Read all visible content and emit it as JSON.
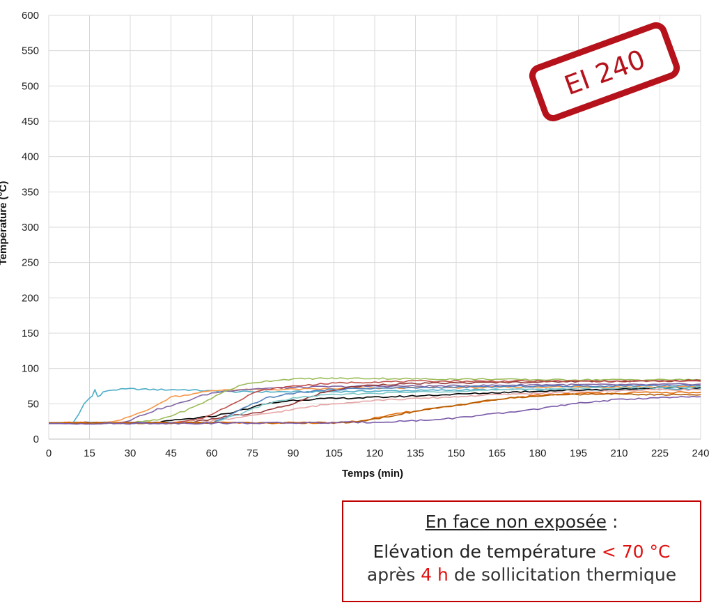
{
  "chart_data": {
    "type": "line",
    "title": "",
    "xlabel": "Temps (min)",
    "ylabel": "Température (°C)",
    "xlim": [
      0,
      240
    ],
    "ylim": [
      0,
      600
    ],
    "x_ticks": [
      0,
      15,
      30,
      45,
      60,
      75,
      90,
      105,
      120,
      135,
      150,
      165,
      180,
      195,
      210,
      225,
      240
    ],
    "y_ticks": [
      0,
      50,
      100,
      150,
      200,
      250,
      300,
      350,
      400,
      450,
      500,
      550,
      600
    ],
    "grid": true,
    "legend": "none",
    "series": [
      {
        "color": "#4bacc6",
        "x": [
          0,
          9,
          11,
          13,
          15,
          16,
          17,
          18,
          19,
          20,
          22,
          25,
          30,
          40,
          50,
          60,
          70,
          80,
          100,
          120,
          140,
          160,
          180,
          200,
          220,
          240
        ],
        "y": [
          23,
          23,
          35,
          50,
          58,
          62,
          70,
          60,
          62,
          66,
          69,
          70,
          71,
          70,
          70,
          68,
          67,
          67,
          67,
          68,
          69,
          70,
          70,
          70,
          71,
          71
        ]
      },
      {
        "color": "#f79646",
        "x": [
          0,
          20,
          25,
          30,
          35,
          40,
          45,
          50,
          55,
          60,
          65,
          70,
          80,
          100,
          120,
          140,
          160,
          180,
          200,
          220,
          240
        ],
        "y": [
          23,
          23,
          25,
          32,
          40,
          48,
          60,
          62,
          66,
          68,
          70,
          70,
          70,
          71,
          72,
          73,
          73,
          74,
          74,
          74,
          75
        ]
      },
      {
        "color": "#8064a2",
        "x": [
          0,
          25,
          30,
          35,
          40,
          45,
          50,
          55,
          60,
          65,
          70,
          80,
          100,
          120,
          140,
          160,
          180,
          200,
          220,
          240
        ],
        "y": [
          23,
          23,
          27,
          35,
          42,
          47,
          53,
          60,
          65,
          68,
          70,
          72,
          74,
          75,
          75,
          76,
          77,
          77,
          77,
          78
        ]
      },
      {
        "color": "#9bbb59",
        "x": [
          0,
          30,
          40,
          45,
          50,
          55,
          60,
          65,
          70,
          75,
          80,
          85,
          90,
          100,
          110,
          120,
          140,
          160,
          180,
          200,
          220,
          240
        ],
        "y": [
          23,
          23,
          27,
          33,
          40,
          48,
          58,
          68,
          75,
          80,
          82,
          84,
          85,
          86,
          86,
          86,
          85,
          85,
          84,
          84,
          84,
          84
        ]
      },
      {
        "color": "#000000",
        "x": [
          0,
          40,
          45,
          50,
          55,
          60,
          65,
          70,
          75,
          80,
          90,
          100,
          110,
          120,
          140,
          160,
          180,
          200,
          220,
          240
        ],
        "y": [
          23,
          23,
          26,
          28,
          30,
          32,
          36,
          40,
          45,
          50,
          55,
          57,
          58,
          59,
          62,
          65,
          68,
          70,
          72,
          73
        ]
      },
      {
        "color": "#953735",
        "x": [
          0,
          50,
          55,
          60,
          65,
          70,
          75,
          80,
          90,
          100,
          110,
          120,
          140,
          160,
          180,
          200,
          220,
          240
        ],
        "y": [
          23,
          23,
          25,
          28,
          32,
          34,
          36,
          40,
          50,
          65,
          73,
          77,
          79,
          80,
          81,
          82,
          82,
          83
        ]
      },
      {
        "color": "#c0504d",
        "x": [
          0,
          45,
          55,
          60,
          65,
          70,
          75,
          80,
          90,
          100,
          110,
          120,
          140,
          160,
          180,
          200,
          220,
          240
        ],
        "y": [
          23,
          23,
          28,
          35,
          45,
          55,
          65,
          70,
          75,
          78,
          80,
          81,
          82,
          82,
          82,
          82,
          82,
          82
        ]
      },
      {
        "color": "#e6a6a6",
        "x": [
          0,
          55,
          65,
          75,
          80,
          90,
          100,
          110,
          120,
          140,
          160,
          180,
          200,
          220,
          240
        ],
        "y": [
          23,
          23,
          28,
          33,
          36,
          42,
          48,
          52,
          55,
          58,
          62,
          65,
          67,
          70,
          70
        ]
      },
      {
        "color": "#4f81bd",
        "x": [
          0,
          60,
          65,
          70,
          75,
          80,
          90,
          100,
          110,
          120,
          140,
          160,
          180,
          200,
          220,
          240
        ],
        "y": [
          23,
          23,
          30,
          40,
          50,
          58,
          65,
          69,
          71,
          72,
          73,
          74,
          75,
          75,
          76,
          76
        ]
      },
      {
        "color": "#7fc8c8",
        "x": [
          0,
          60,
          70,
          80,
          90,
          100,
          120,
          140,
          160,
          180,
          200,
          220,
          240
        ],
        "y": [
          23,
          23,
          35,
          50,
          58,
          62,
          65,
          67,
          69,
          71,
          72,
          73,
          74
        ]
      },
      {
        "color": "#e36c09",
        "x": [
          0,
          100,
          110,
          115,
          120,
          125,
          130,
          135,
          140,
          145,
          150,
          155,
          160,
          165,
          170,
          180,
          190,
          200,
          210,
          220,
          230,
          240
        ],
        "y": [
          23,
          23,
          24,
          26,
          30,
          33,
          37,
          40,
          43,
          45,
          48,
          50,
          53,
          55,
          58,
          62,
          64,
          65,
          65,
          66,
          66,
          66
        ]
      },
      {
        "color": "#b25a00",
        "x": [
          0,
          105,
          115,
          120,
          125,
          130,
          140,
          150,
          160,
          170,
          180,
          190,
          200,
          210,
          220,
          230,
          240
        ],
        "y": [
          23,
          23,
          25,
          28,
          32,
          36,
          42,
          48,
          54,
          58,
          61,
          63,
          64,
          64,
          63,
          63,
          63
        ]
      },
      {
        "color": "#7a5aa8",
        "x": [
          0,
          100,
          120,
          140,
          150,
          160,
          170,
          180,
          190,
          200,
          210,
          220,
          230,
          240
        ],
        "y": [
          22,
          23,
          24,
          27,
          30,
          34,
          38,
          43,
          48,
          53,
          56,
          58,
          59,
          60
        ]
      }
    ]
  },
  "stamp": {
    "text": "EI 240",
    "color": "#b5121b"
  },
  "note": {
    "heading": "En face non exposée",
    "heading_suffix": " :",
    "line1_text": "Elévation de température ",
    "line1_value": "< 70 °C",
    "line2_prefix": "après ",
    "line2_value": "4 h",
    "line2_suffix": " de sollicitation thermique",
    "border_color": "#c00000",
    "highlight_color": "#e01010"
  }
}
